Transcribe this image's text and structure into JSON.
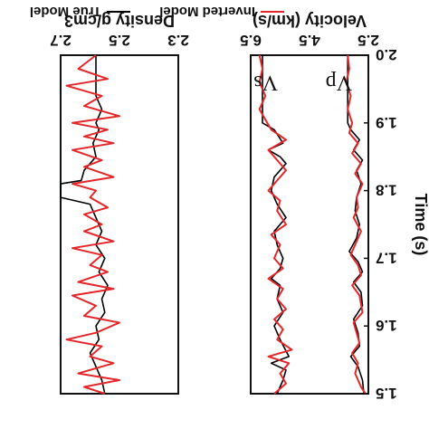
{
  "chart_data": [
    {
      "type": "line",
      "xlabel": "Velocity (km/s)",
      "ylabel": "Time (s)",
      "x_ticks": [
        "2.5",
        "4.5",
        "6.5"
      ],
      "y_ticks": [
        "1.5",
        "1.6",
        "1.7",
        "1.8",
        "1.9",
        "2.0"
      ],
      "xlim": [
        2.5,
        6.5
      ],
      "ylim": [
        1.5,
        2.0
      ],
      "annotations": [
        "Vs",
        "Vp"
      ],
      "series": [
        {
          "name": "True Model",
          "color": "#000000",
          "curves": [
            {
              "label": "Vs",
              "points": [
                [
                  2.65,
                  1.5
                ],
                [
                  2.7,
                  1.52
                ],
                [
                  2.85,
                  1.54
                ],
                [
                  3.1,
                  1.555
                ],
                [
                  2.8,
                  1.57
                ],
                [
                  2.85,
                  1.59
                ],
                [
                  3.0,
                  1.61
                ],
                [
                  2.7,
                  1.63
                ],
                [
                  2.75,
                  1.65
                ],
                [
                  3.0,
                  1.665
                ],
                [
                  2.7,
                  1.68
                ],
                [
                  2.85,
                  1.695
                ],
                [
                  3.15,
                  1.71
                ],
                [
                  2.9,
                  1.73
                ],
                [
                  2.8,
                  1.75
                ],
                [
                  2.95,
                  1.77
                ],
                [
                  2.9,
                  1.79
                ],
                [
                  2.75,
                  1.81
                ],
                [
                  2.9,
                  1.83
                ],
                [
                  2.7,
                  1.845
                ],
                [
                  3.0,
                  1.86
                ],
                [
                  2.8,
                  1.875
                ],
                [
                  3.1,
                  1.89
                ],
                [
                  3.2,
                  1.9
                ],
                [
                  3.2,
                  2.0
                ]
              ]
            },
            {
              "label": "Vp",
              "points": [
                [
                  5.6,
                  1.5
                ],
                [
                  5.4,
                  1.52
                ],
                [
                  5.3,
                  1.535
                ],
                [
                  5.8,
                  1.545
                ],
                [
                  5.2,
                  1.555
                ],
                [
                  5.5,
                  1.58
                ],
                [
                  5.7,
                  1.6
                ],
                [
                  5.4,
                  1.62
                ],
                [
                  5.6,
                  1.64
                ],
                [
                  5.5,
                  1.66
                ],
                [
                  5.8,
                  1.67
                ],
                [
                  5.5,
                  1.685
                ],
                [
                  5.4,
                  1.7
                ],
                [
                  5.6,
                  1.72
                ],
                [
                  5.7,
                  1.74
                ],
                [
                  5.3,
                  1.76
                ],
                [
                  5.6,
                  1.78
                ],
                [
                  5.8,
                  1.8
                ],
                [
                  5.7,
                  1.82
                ],
                [
                  5.3,
                  1.84
                ],
                [
                  5.5,
                  1.85
                ],
                [
                  5.9,
                  1.86
                ],
                [
                  5.4,
                  1.87
                ],
                [
                  5.7,
                  1.89
                ],
                [
                  6.1,
                  1.9
                ],
                [
                  6.1,
                  2.0
                ]
              ]
            }
          ]
        },
        {
          "name": "Inverted Model",
          "color": "#e3262a",
          "curves": [
            {
              "label": "Vs",
              "points": [
                [
                  2.6,
                  1.5
                ],
                [
                  2.75,
                  1.51
                ],
                [
                  2.95,
                  1.53
                ],
                [
                  2.85,
                  1.545
                ],
                [
                  3.05,
                  1.56
                ],
                [
                  2.8,
                  1.575
                ],
                [
                  2.9,
                  1.59
                ],
                [
                  3.0,
                  1.605
                ],
                [
                  2.7,
                  1.62
                ],
                [
                  2.8,
                  1.645
                ],
                [
                  3.05,
                  1.66
                ],
                [
                  2.75,
                  1.675
                ],
                [
                  2.85,
                  1.69
                ],
                [
                  3.1,
                  1.705
                ],
                [
                  2.95,
                  1.72
                ],
                [
                  2.75,
                  1.74
                ],
                [
                  3.0,
                  1.76
                ],
                [
                  2.85,
                  1.775
                ],
                [
                  2.9,
                  1.79
                ],
                [
                  2.7,
                  1.81
                ],
                [
                  2.95,
                  1.825
                ],
                [
                  2.75,
                  1.84
                ],
                [
                  3.05,
                  1.855
                ],
                [
                  2.85,
                  1.87
                ],
                [
                  3.15,
                  1.885
                ],
                [
                  3.05,
                  1.9
                ],
                [
                  3.2,
                  1.92
                ],
                [
                  3.1,
                  1.94
                ],
                [
                  3.25,
                  1.96
                ],
                [
                  3.15,
                  1.98
                ],
                [
                  3.2,
                  2.0
                ]
              ]
            },
            {
              "label": "Vp",
              "points": [
                [
                  5.7,
                  1.5
                ],
                [
                  5.3,
                  1.515
                ],
                [
                  5.5,
                  1.53
                ],
                [
                  5.2,
                  1.545
                ],
                [
                  5.9,
                  1.555
                ],
                [
                  5.1,
                  1.565
                ],
                [
                  5.6,
                  1.58
                ],
                [
                  5.4,
                  1.595
                ],
                [
                  5.7,
                  1.61
                ],
                [
                  5.3,
                  1.625
                ],
                [
                  5.6,
                  1.64
                ],
                [
                  5.4,
                  1.655
                ],
                [
                  5.9,
                  1.67
                ],
                [
                  5.4,
                  1.685
                ],
                [
                  5.7,
                  1.7
                ],
                [
                  5.5,
                  1.72
                ],
                [
                  5.8,
                  1.735
                ],
                [
                  5.3,
                  1.75
                ],
                [
                  5.6,
                  1.77
                ],
                [
                  5.5,
                  1.785
                ],
                [
                  5.9,
                  1.8
                ],
                [
                  5.6,
                  1.815
                ],
                [
                  5.3,
                  1.83
                ],
                [
                  5.6,
                  1.845
                ],
                [
                  5.9,
                  1.86
                ],
                [
                  5.3,
                  1.875
                ],
                [
                  5.8,
                  1.89
                ],
                [
                  6.0,
                  1.905
                ],
                [
                  6.2,
                  1.92
                ],
                [
                  6.0,
                  1.94
                ],
                [
                  6.2,
                  1.96
                ],
                [
                  6.1,
                  1.98
                ],
                [
                  6.2,
                  2.0
                ]
              ]
            }
          ]
        }
      ]
    },
    {
      "type": "line",
      "xlabel": "Density g/cm3",
      "x_ticks": [
        "2.3",
        "2.5",
        "2.7"
      ],
      "xlim": [
        2.3,
        2.7
      ],
      "ylim": [
        1.5,
        2.0
      ],
      "series": [
        {
          "name": "True Model",
          "color": "#000000",
          "points": [
            [
              2.55,
              1.5
            ],
            [
              2.56,
              1.52
            ],
            [
              2.58,
              1.54
            ],
            [
              2.6,
              1.56
            ],
            [
              2.57,
              1.58
            ],
            [
              2.58,
              1.6
            ],
            [
              2.55,
              1.62
            ],
            [
              2.56,
              1.64
            ],
            [
              2.54,
              1.66
            ],
            [
              2.57,
              1.68
            ],
            [
              2.55,
              1.7
            ],
            [
              2.58,
              1.72
            ],
            [
              2.56,
              1.74
            ],
            [
              2.58,
              1.76
            ],
            [
              2.6,
              1.78
            ],
            [
              2.7,
              1.79
            ],
            [
              2.7,
              1.81
            ],
            [
              2.63,
              1.815
            ],
            [
              2.62,
              1.83
            ],
            [
              2.58,
              1.85
            ],
            [
              2.59,
              1.87
            ],
            [
              2.57,
              1.89
            ],
            [
              2.58,
              1.9
            ],
            [
              2.56,
              1.92
            ],
            [
              2.58,
              1.94
            ],
            [
              2.58,
              2.0
            ]
          ]
        },
        {
          "name": "Inverted Model",
          "color": "#e3262a",
          "points": [
            [
              2.55,
              1.5
            ],
            [
              2.62,
              1.51
            ],
            [
              2.5,
              1.52
            ],
            [
              2.64,
              1.53
            ],
            [
              2.52,
              1.545
            ],
            [
              2.6,
              1.555
            ],
            [
              2.56,
              1.57
            ],
            [
              2.68,
              1.58
            ],
            [
              2.58,
              1.59
            ],
            [
              2.5,
              1.605
            ],
            [
              2.62,
              1.615
            ],
            [
              2.58,
              1.63
            ],
            [
              2.66,
              1.645
            ],
            [
              2.52,
              1.655
            ],
            [
              2.64,
              1.665
            ],
            [
              2.54,
              1.68
            ],
            [
              2.6,
              1.69
            ],
            [
              2.56,
              1.705
            ],
            [
              2.66,
              1.715
            ],
            [
              2.52,
              1.725
            ],
            [
              2.62,
              1.74
            ],
            [
              2.56,
              1.75
            ],
            [
              2.62,
              1.765
            ],
            [
              2.54,
              1.775
            ],
            [
              2.6,
              1.79
            ],
            [
              2.58,
              1.8
            ],
            [
              2.66,
              1.81
            ],
            [
              2.52,
              1.82
            ],
            [
              2.62,
              1.835
            ],
            [
              2.56,
              1.845
            ],
            [
              2.66,
              1.86
            ],
            [
              2.52,
              1.87
            ],
            [
              2.62,
              1.88
            ],
            [
              2.54,
              1.89
            ],
            [
              2.66,
              1.9
            ],
            [
              2.5,
              1.91
            ],
            [
              2.62,
              1.925
            ],
            [
              2.56,
              1.94
            ],
            [
              2.68,
              1.955
            ],
            [
              2.54,
              1.965
            ],
            [
              2.64,
              1.98
            ],
            [
              2.58,
              2.0
            ]
          ]
        }
      ]
    }
  ]
}
